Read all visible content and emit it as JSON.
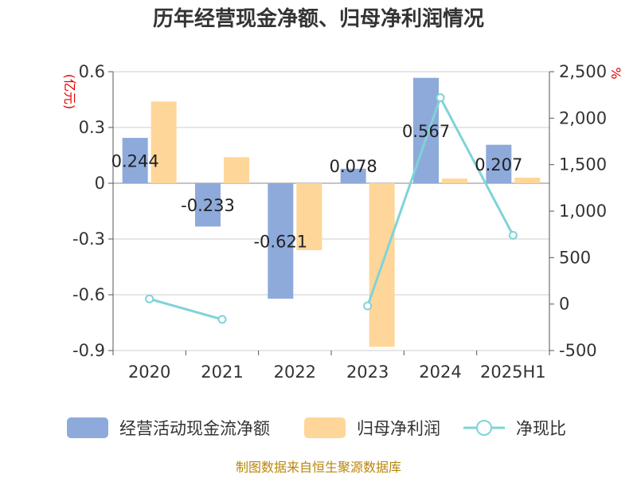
{
  "chart_data": {
    "type": "bar",
    "title": "历年经营现金净额、归母净利润情况",
    "categories": [
      "2020",
      "2021",
      "2022",
      "2023",
      "2024",
      "2025H1"
    ],
    "left_axis": {
      "unit": "(亿元)",
      "min": -0.9,
      "max": 0.6,
      "ticks": [
        0.6,
        0.3,
        0,
        -0.3,
        -0.6,
        -0.9
      ],
      "tick_labels": [
        "0.6",
        "0.3",
        "0",
        "-0.3",
        "-0.6",
        "-0.9"
      ]
    },
    "right_axis": {
      "unit": "%",
      "min": -500,
      "max": 2500,
      "ticks": [
        2500,
        2000,
        1500,
        1000,
        500,
        0,
        -500
      ],
      "tick_labels": [
        "2,500",
        "2,000",
        "1,500",
        "1,000",
        "500",
        "0",
        "-500"
      ]
    },
    "series": [
      {
        "name": "经营活动现金流净额",
        "type": "bar",
        "axis": "left",
        "color": "#8eaadb",
        "values": [
          0.244,
          -0.233,
          -0.621,
          0.078,
          0.567,
          0.207
        ],
        "labels": [
          "0.244",
          "-0.233",
          "-0.621",
          "0.078",
          "0.567",
          "0.207"
        ]
      },
      {
        "name": "归母净利润",
        "type": "bar",
        "axis": "left",
        "color": "#ffd699",
        "values": [
          0.44,
          0.14,
          -0.36,
          -0.88,
          0.025,
          0.03
        ]
      },
      {
        "name": "净现比",
        "type": "line",
        "axis": "right",
        "color": "#7fd3d8",
        "values": [
          55,
          -165,
          null,
          -20,
          2220,
          740
        ]
      }
    ],
    "grid": true,
    "legend_position": "bottom"
  },
  "legend": [
    {
      "label": "经营活动现金流净额",
      "shape": "bar",
      "color": "#8eaadb"
    },
    {
      "label": "归母净利润",
      "shape": "bar",
      "color": "#ffd699"
    },
    {
      "label": "净现比",
      "shape": "line",
      "color": "#7fd3d8"
    }
  ],
  "source": "制图数据来自恒生聚源数据库"
}
